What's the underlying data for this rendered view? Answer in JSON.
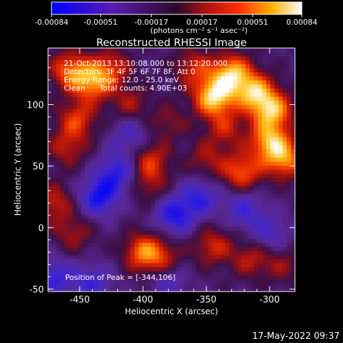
{
  "colorbar": {
    "ticks": [
      "-0.00084",
      "-0.00051",
      "-0.00017",
      "0.00017",
      "0.00051",
      "0.00084"
    ],
    "units": "(photons cm⁻² s⁻¹ asec⁻²)",
    "range": [
      -0.00084,
      0.00084
    ]
  },
  "chart_data": {
    "type": "heatmap",
    "title": "Reconstructed RHESSI Image",
    "xlabel": "Heliocentric X (arcsec)",
    "ylabel": "Heliocentric Y (arcsec)",
    "xlim": [
      -475,
      -280
    ],
    "ylim": [
      -52,
      146
    ],
    "xticks": [
      "-450",
      "-400",
      "-350",
      "-300"
    ],
    "yticks": [
      "100",
      "50",
      "0",
      "-50"
    ],
    "colormap": "blue-purple-red-yellow-white",
    "annotations": {
      "time": "21-Oct-2013 13:10:08.000 to 13:12:20.000",
      "detectors": "Detectors: 3F 4F 5F 6F 7F 8F, Att 0",
      "energy": "Energy Range: 12.0 - 25.0 keV",
      "clean_label": "Clean",
      "counts": "Total counts: 4.90E+03",
      "peak": "Position of Peak = [-344,106]"
    },
    "peak": [
      -344,
      106
    ],
    "sources": [
      {
        "x": -440,
        "y": 118,
        "value": 0.00062
      },
      {
        "x": -458,
        "y": 128,
        "value": 0.00055
      },
      {
        "x": -452,
        "y": 88,
        "value": 0.00045
      },
      {
        "x": -460,
        "y": 65,
        "value": 0.00035
      },
      {
        "x": -425,
        "y": 130,
        "value": 0.0004
      },
      {
        "x": -410,
        "y": 100,
        "value": 0.0003
      },
      {
        "x": -395,
        "y": 55,
        "value": 0.00042
      },
      {
        "x": -395,
        "y": 35,
        "value": 0.00028
      },
      {
        "x": -380,
        "y": 85,
        "value": 0.00025
      },
      {
        "x": -344,
        "y": 106,
        "value": 0.00084
      },
      {
        "x": -330,
        "y": 125,
        "value": 0.00075
      },
      {
        "x": -312,
        "y": 110,
        "value": 0.0007
      },
      {
        "x": -298,
        "y": 95,
        "value": 0.00072
      },
      {
        "x": -300,
        "y": 70,
        "value": 0.00068
      },
      {
        "x": -288,
        "y": 55,
        "value": 0.0006
      },
      {
        "x": -322,
        "y": 45,
        "value": 0.00055
      },
      {
        "x": -335,
        "y": 80,
        "value": 0.00035
      },
      {
        "x": -350,
        "y": 55,
        "value": 0.0003
      },
      {
        "x": -360,
        "y": 130,
        "value": 0.0004
      },
      {
        "x": -470,
        "y": 20,
        "value": 0.00038
      },
      {
        "x": -455,
        "y": -5,
        "value": 0.0003
      },
      {
        "x": -400,
        "y": -20,
        "value": 0.00055
      },
      {
        "x": -385,
        "y": -25,
        "value": 0.00035
      },
      {
        "x": -345,
        "y": -15,
        "value": 0.0004
      },
      {
        "x": -315,
        "y": -25,
        "value": 0.00035
      },
      {
        "x": -290,
        "y": -30,
        "value": 0.00025
      },
      {
        "x": -420,
        "y": 45,
        "value": -0.0005
      },
      {
        "x": -435,
        "y": 25,
        "value": -0.0006
      },
      {
        "x": -375,
        "y": 10,
        "value": -0.00055
      },
      {
        "x": -355,
        "y": 25,
        "value": -0.00045
      },
      {
        "x": -470,
        "y": -40,
        "value": -0.00045
      },
      {
        "x": -440,
        "y": -45,
        "value": -0.0004
      },
      {
        "x": -320,
        "y": 15,
        "value": -0.0004
      },
      {
        "x": -300,
        "y": -5,
        "value": -0.00035
      },
      {
        "x": -410,
        "y": 75,
        "value": -0.00035
      },
      {
        "x": -380,
        "y": -45,
        "value": -0.0003
      }
    ]
  },
  "footer": {
    "datetime": "17-May-2022 09:37"
  }
}
